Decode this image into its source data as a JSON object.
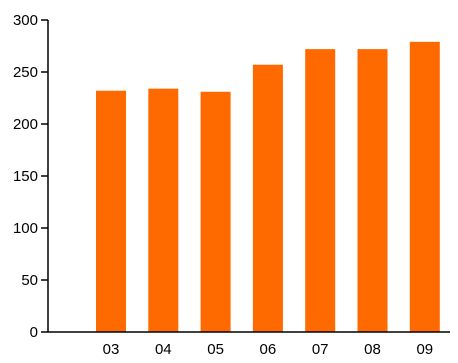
{
  "chart_data": {
    "type": "bar",
    "title": "",
    "xlabel": "",
    "ylabel": "",
    "categories": [
      "03",
      "04",
      "05",
      "06",
      "07",
      "08",
      "09"
    ],
    "values": [
      232,
      234,
      231,
      257,
      272,
      272,
      279
    ],
    "ylim": [
      0,
      300
    ],
    "yticks": [
      0,
      50,
      100,
      150,
      200,
      250,
      300
    ],
    "grid": false,
    "legend": "none",
    "colors": {
      "bar": "#ff6a00",
      "axis": "#000000",
      "text": "#000000"
    }
  }
}
